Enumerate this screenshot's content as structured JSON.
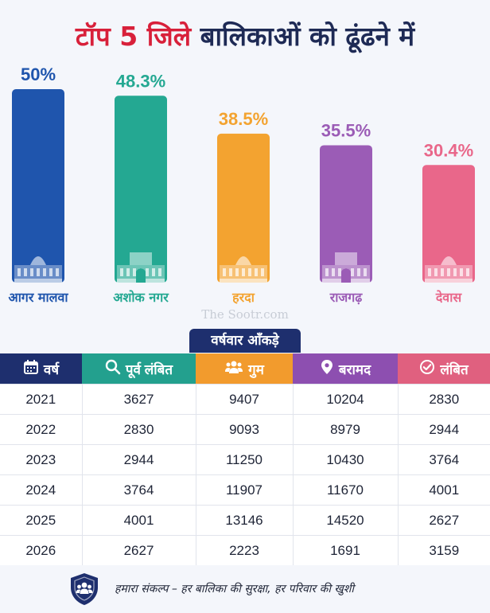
{
  "header": {
    "title_part1": "टॉप 5 जिले",
    "title_part2": "बालिकाओं को ढूंढने में"
  },
  "chart_data": {
    "type": "bar",
    "title": "टॉप 5 जिले बालिकाओं को ढूंढने में",
    "categories": [
      "आगर मालवा",
      "अशोक नगर",
      "हरदा",
      "राजगढ़",
      "देवास"
    ],
    "values": [
      50,
      48.3,
      38.5,
      35.5,
      30.4
    ],
    "value_labels": [
      "50%",
      "48.3%",
      "38.5%",
      "35.5%",
      "30.4%"
    ],
    "colors": [
      "#1f55ad",
      "#24a892",
      "#f3a330",
      "#9b5cb6",
      "#e9678a"
    ],
    "ylim": [
      0,
      50
    ],
    "grid": false,
    "legend": "none"
  },
  "watermark": "The Sootr.com",
  "table": {
    "section_title": "वर्षवार आँकड़े",
    "columns": [
      {
        "label": "वर्ष",
        "icon": "calendar-icon",
        "color": "#1e2f6e"
      },
      {
        "label": "पूर्व लंबित",
        "icon": "search-icon",
        "color": "#23a08e"
      },
      {
        "label": "गुम",
        "icon": "people-icon",
        "color": "#f29b2d"
      },
      {
        "label": "बरामद",
        "icon": "location-pin-icon",
        "color": "#8d4fb0"
      },
      {
        "label": "लंबित",
        "icon": "check-circle-icon",
        "color": "#e0607f"
      }
    ],
    "rows": [
      [
        "2021",
        "3627",
        "9407",
        "10204",
        "2830"
      ],
      [
        "2022",
        "2830",
        "9093",
        "8979",
        "2944"
      ],
      [
        "2023",
        "2944",
        "11250",
        "10430",
        "3764"
      ],
      [
        "2024",
        "3764",
        "11907",
        "11670",
        "4001"
      ],
      [
        "2025",
        "4001",
        "13146",
        "14520",
        "2627"
      ],
      [
        "2026",
        "2627",
        "2223",
        "1691",
        "3159"
      ]
    ]
  },
  "footer": {
    "icon": "shield-people-icon",
    "text": "हमारा संकल्प – हर बालिका की सुरक्षा, हर परिवार की खुशी"
  }
}
